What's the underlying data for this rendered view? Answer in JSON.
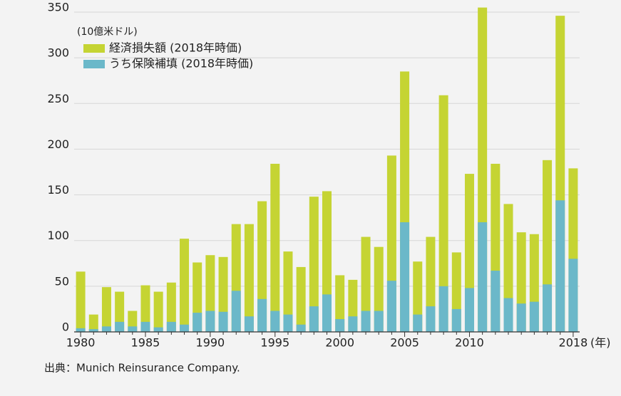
{
  "chart_data": {
    "type": "bar",
    "unit_label": "(10億米ドル)",
    "x_unit_label": "(年)",
    "source": "出典：Munich Reinsurance Company.",
    "categories": [
      "1980",
      null,
      null,
      null,
      null,
      "1985",
      null,
      null,
      null,
      null,
      "1990",
      null,
      null,
      null,
      null,
      "1995",
      null,
      null,
      null,
      null,
      "2000",
      null,
      null,
      null,
      null,
      "2005",
      null,
      null,
      null,
      null,
      "2010",
      null,
      null,
      null,
      null,
      null,
      null,
      null,
      "2018"
    ],
    "series": [
      {
        "name": "経済損失額 (2018年時価)",
        "color": "#c5d433",
        "values": [
          66,
          19,
          49,
          44,
          23,
          51,
          44,
          54,
          102,
          76,
          84,
          82,
          118,
          118,
          143,
          184,
          88,
          71,
          148,
          154,
          62,
          57,
          104,
          93,
          193,
          285,
          77,
          104,
          259,
          87,
          173,
          355,
          184,
          140,
          109,
          107,
          188,
          346,
          179
        ]
      },
      {
        "name": "うち保険補填 (2018年時価)",
        "color": "#6bb8c9",
        "values": [
          4,
          3,
          6,
          11,
          6,
          11,
          5,
          11,
          8,
          21,
          23,
          22,
          45,
          17,
          36,
          23,
          19,
          8,
          28,
          41,
          14,
          17,
          23,
          23,
          56,
          120,
          19,
          28,
          50,
          25,
          48,
          120,
          67,
          37,
          31,
          33,
          52,
          144,
          80
        ]
      }
    ],
    "ylim": [
      0,
      350
    ],
    "yticks": [
      0,
      50,
      100,
      150,
      200,
      250,
      300,
      350
    ],
    "grid": true
  }
}
